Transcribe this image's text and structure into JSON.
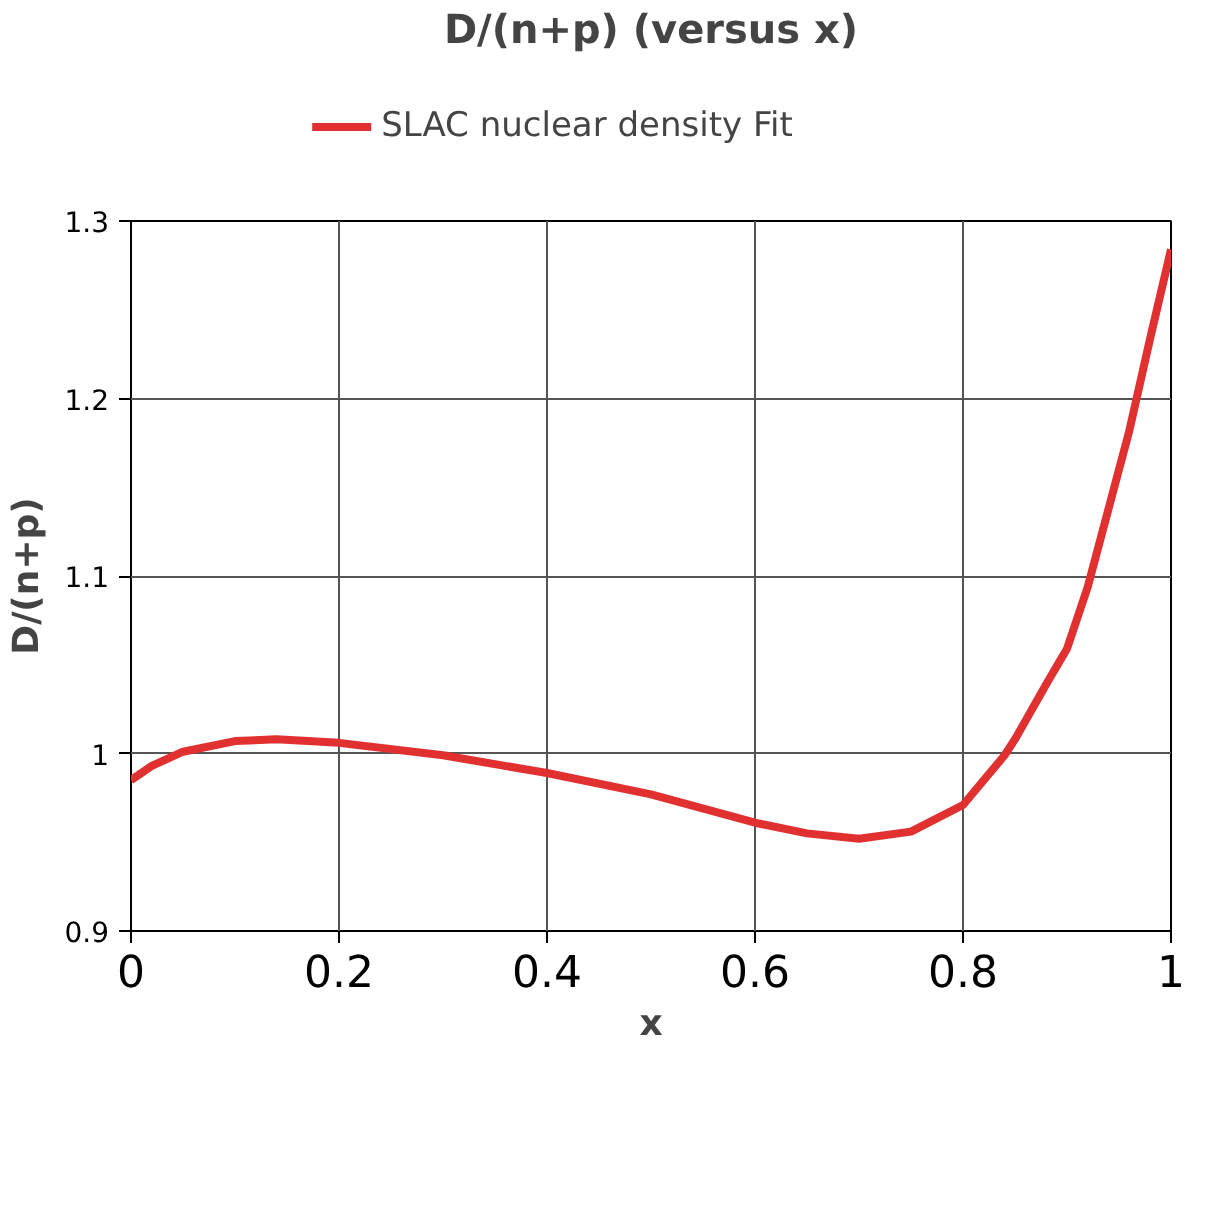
{
  "chart_data": {
    "type": "line",
    "title": "D/(n+p) (versus x)",
    "xlabel": "x",
    "ylabel": "D/(n+p)",
    "x": [
      0,
      0.02,
      0.05,
      0.1,
      0.14,
      0.2,
      0.3,
      0.4,
      0.5,
      0.6,
      0.65,
      0.7,
      0.75,
      0.8,
      0.84,
      0.85,
      0.88,
      0.9,
      0.92,
      0.94,
      0.96,
      0.98,
      1.0
    ],
    "series": [
      {
        "name": "SLAC nuclear density Fit",
        "color": "#e03030",
        "values": [
          0.985,
          0.993,
          1.001,
          1.007,
          1.008,
          1.006,
          0.999,
          0.989,
          0.977,
          0.961,
          0.955,
          0.952,
          0.956,
          0.971,
          0.999,
          1.008,
          1.039,
          1.059,
          1.094,
          1.138,
          1.182,
          1.234,
          1.284
        ]
      }
    ],
    "xlim": [
      0,
      1
    ],
    "xticks": [
      0,
      0.2,
      0.4,
      0.6,
      0.8,
      1
    ],
    "ylim": [
      0.9,
      1.3
    ],
    "yticks": [
      0.9,
      1,
      1.1,
      1.2,
      1.3
    ],
    "grid": true,
    "legend": "top",
    "marker": "none",
    "line_style": "solid"
  }
}
